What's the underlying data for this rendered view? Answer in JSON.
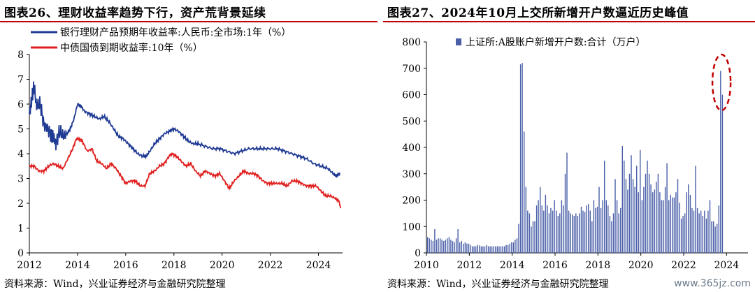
{
  "left": {
    "title": "图表26、理财收益率趋势下行，资产荒背景延续",
    "source": "资料来源：Wind，兴业证券经济与金融研究院整理"
  },
  "right": {
    "title": "图表27、2024年10月上交所新增开户数逼近历史峰值",
    "source": "资料来源：Wind，兴业证券经济与金融研究院整理"
  },
  "watermark": "www.365jz.com",
  "colors": {
    "navy": "#1f3a93",
    "red": "#e02020",
    "bar": "#4a5fa8",
    "annotation": "#c00000"
  },
  "chart_data": [
    {
      "type": "line",
      "title": "",
      "xlabel": "",
      "ylabel": "",
      "ylim": [
        0,
        8
      ],
      "xlim": [
        2012,
        2025
      ],
      "xticks": [
        "2012",
        "2014",
        "2016",
        "2018",
        "2020",
        "2022",
        "2024"
      ],
      "yticks": [
        "0",
        "1",
        "2",
        "3",
        "4",
        "5",
        "6",
        "7",
        "8"
      ],
      "legend_position": "top-left",
      "grid": false,
      "series": [
        {
          "name": "银行理财产品预期年收益率:人民币:全市场:1年（%）",
          "color": "#1f3a93",
          "points": [
            [
              2012.0,
              5.6
            ],
            [
              2012.1,
              6.2
            ],
            [
              2012.2,
              6.7
            ],
            [
              2012.3,
              5.9
            ],
            [
              2012.45,
              6.0
            ],
            [
              2012.6,
              5.2
            ],
            [
              2012.75,
              5.0
            ],
            [
              2012.9,
              4.8
            ],
            [
              2013.0,
              4.7
            ],
            [
              2013.1,
              4.4
            ],
            [
              2013.25,
              4.9
            ],
            [
              2013.4,
              4.7
            ],
            [
              2013.55,
              4.8
            ],
            [
              2013.7,
              5.0
            ],
            [
              2013.85,
              5.4
            ],
            [
              2014.0,
              6.0
            ],
            [
              2014.15,
              5.9
            ],
            [
              2014.3,
              5.7
            ],
            [
              2014.5,
              5.6
            ],
            [
              2014.7,
              5.5
            ],
            [
              2014.9,
              5.4
            ],
            [
              2015.1,
              5.5
            ],
            [
              2015.3,
              5.3
            ],
            [
              2015.5,
              5.0
            ],
            [
              2015.7,
              4.7
            ],
            [
              2015.9,
              4.6
            ],
            [
              2016.1,
              4.4
            ],
            [
              2016.3,
              4.2
            ],
            [
              2016.5,
              4.0
            ],
            [
              2016.7,
              3.9
            ],
            [
              2016.85,
              3.9
            ],
            [
              2017.0,
              4.1
            ],
            [
              2017.2,
              4.4
            ],
            [
              2017.4,
              4.6
            ],
            [
              2017.6,
              4.8
            ],
            [
              2017.8,
              4.9
            ],
            [
              2018.0,
              5.0
            ],
            [
              2018.2,
              4.9
            ],
            [
              2018.4,
              4.7
            ],
            [
              2018.6,
              4.5
            ],
            [
              2018.8,
              4.4
            ],
            [
              2019.0,
              4.4
            ],
            [
              2019.3,
              4.3
            ],
            [
              2019.6,
              4.2
            ],
            [
              2019.9,
              4.2
            ],
            [
              2020.2,
              4.1
            ],
            [
              2020.5,
              4.0
            ],
            [
              2020.8,
              4.1
            ],
            [
              2021.1,
              4.2
            ],
            [
              2021.4,
              4.2
            ],
            [
              2021.7,
              4.2
            ],
            [
              2022.0,
              4.2
            ],
            [
              2022.3,
              4.2
            ],
            [
              2022.6,
              4.1
            ],
            [
              2022.9,
              4.0
            ],
            [
              2023.2,
              3.9
            ],
            [
              2023.5,
              3.8
            ],
            [
              2023.8,
              3.6
            ],
            [
              2024.1,
              3.5
            ],
            [
              2024.4,
              3.4
            ],
            [
              2024.6,
              3.2
            ],
            [
              2024.75,
              3.1
            ],
            [
              2024.9,
              3.2
            ]
          ]
        },
        {
          "name": "中债国债到期收益率:10年（%）",
          "color": "#e02020",
          "points": [
            [
              2012.0,
              3.5
            ],
            [
              2012.2,
              3.5
            ],
            [
              2012.4,
              3.3
            ],
            [
              2012.6,
              3.3
            ],
            [
              2012.8,
              3.5
            ],
            [
              2013.0,
              3.6
            ],
            [
              2013.2,
              3.5
            ],
            [
              2013.4,
              3.4
            ],
            [
              2013.6,
              3.8
            ],
            [
              2013.8,
              4.2
            ],
            [
              2013.95,
              4.6
            ],
            [
              2014.05,
              4.6
            ],
            [
              2014.2,
              4.5
            ],
            [
              2014.4,
              4.1
            ],
            [
              2014.6,
              4.2
            ],
            [
              2014.8,
              3.7
            ],
            [
              2015.0,
              3.6
            ],
            [
              2015.2,
              3.4
            ],
            [
              2015.4,
              3.6
            ],
            [
              2015.6,
              3.4
            ],
            [
              2015.8,
              3.1
            ],
            [
              2016.0,
              2.8
            ],
            [
              2016.2,
              2.9
            ],
            [
              2016.4,
              2.9
            ],
            [
              2016.6,
              2.7
            ],
            [
              2016.8,
              2.7
            ],
            [
              2017.0,
              3.2
            ],
            [
              2017.2,
              3.3
            ],
            [
              2017.4,
              3.5
            ],
            [
              2017.6,
              3.6
            ],
            [
              2017.8,
              3.9
            ],
            [
              2017.9,
              4.0
            ],
            [
              2018.1,
              3.9
            ],
            [
              2018.3,
              3.7
            ],
            [
              2018.5,
              3.5
            ],
            [
              2018.7,
              3.6
            ],
            [
              2018.9,
              3.3
            ],
            [
              2019.1,
              3.1
            ],
            [
              2019.3,
              3.3
            ],
            [
              2019.5,
              3.2
            ],
            [
              2019.7,
              3.1
            ],
            [
              2019.9,
              3.2
            ],
            [
              2020.1,
              2.9
            ],
            [
              2020.3,
              2.6
            ],
            [
              2020.5,
              2.9
            ],
            [
              2020.7,
              3.1
            ],
            [
              2020.9,
              3.3
            ],
            [
              2021.1,
              3.2
            ],
            [
              2021.3,
              3.2
            ],
            [
              2021.5,
              3.1
            ],
            [
              2021.7,
              2.9
            ],
            [
              2021.9,
              2.8
            ],
            [
              2022.1,
              2.8
            ],
            [
              2022.3,
              2.8
            ],
            [
              2022.5,
              2.8
            ],
            [
              2022.7,
              2.7
            ],
            [
              2022.9,
              2.9
            ],
            [
              2023.1,
              2.9
            ],
            [
              2023.3,
              2.8
            ],
            [
              2023.5,
              2.7
            ],
            [
              2023.7,
              2.7
            ],
            [
              2023.9,
              2.7
            ],
            [
              2024.1,
              2.5
            ],
            [
              2024.3,
              2.3
            ],
            [
              2024.5,
              2.3
            ],
            [
              2024.7,
              2.2
            ],
            [
              2024.85,
              2.1
            ],
            [
              2024.92,
              1.8
            ]
          ]
        }
      ]
    },
    {
      "type": "bar",
      "title": "",
      "xlabel": "",
      "ylabel": "",
      "ylim": [
        0,
        800
      ],
      "xlim": [
        2010,
        2025
      ],
      "xticks": [
        "2010",
        "2012",
        "2014",
        "2016",
        "2018",
        "2020",
        "2022",
        "2024"
      ],
      "yticks": [
        "0",
        "100",
        "200",
        "300",
        "400",
        "500",
        "600",
        "700",
        "800"
      ],
      "legend_position": "top-center",
      "grid": false,
      "series": [
        {
          "name": "上证所:A股账户新增开户数:合计（万户）",
          "color": "#4a5fa8",
          "values": [
            60,
            55,
            50,
            45,
            90,
            50,
            55,
            55,
            50,
            45,
            50,
            55,
            60,
            50,
            45,
            40,
            55,
            90,
            40,
            45,
            35,
            40,
            35,
            35,
            30,
            25,
            25,
            25,
            30,
            28,
            25,
            25,
            25,
            30,
            25,
            25,
            25,
            25,
            25,
            25,
            25,
            25,
            25,
            25,
            30,
            30,
            35,
            40,
            40,
            50,
            55,
            110,
            715,
            720,
            460,
            250,
            160,
            150,
            100,
            120,
            120,
            180,
            200,
            250,
            180,
            160,
            220,
            180,
            150,
            170,
            160,
            200,
            160,
            140,
            150,
            200,
            180,
            300,
            380,
            160,
            150,
            145,
            140,
            150,
            140,
            150,
            175,
            160,
            155,
            180,
            185,
            160,
            120,
            200,
            170,
            175,
            250,
            170,
            200,
            350,
            200,
            180,
            140,
            120,
            150,
            280,
            200,
            150,
            170,
            405,
            350,
            280,
            240,
            300,
            370,
            280,
            250,
            330,
            230,
            390,
            200,
            250,
            300,
            350,
            300,
            260,
            230,
            240,
            270,
            300,
            230,
            200,
            200,
            250,
            340,
            200,
            220,
            210,
            210,
            230,
            280,
            190,
            130,
            140,
            150,
            230,
            260,
            220,
            170,
            160,
            330,
            170,
            150,
            160,
            140,
            160,
            130,
            160,
            200,
            120,
            120,
            100,
            110,
            180,
            690,
            600
          ],
          "annotation": "dashed-ellipse-around-2024-10-peak"
        }
      ]
    }
  ]
}
